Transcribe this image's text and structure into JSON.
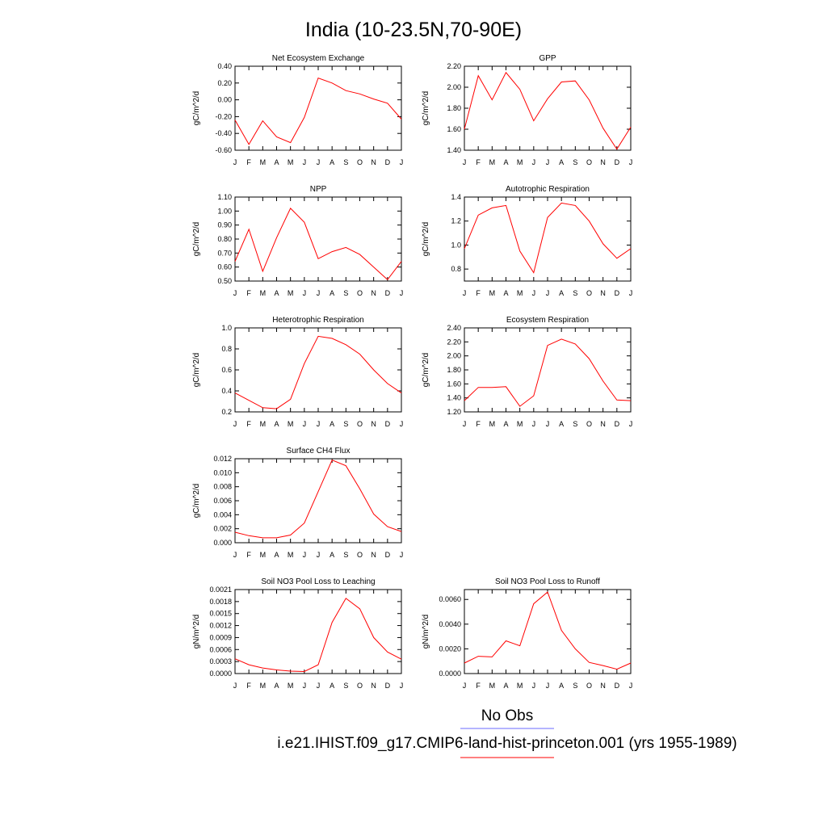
{
  "figure": {
    "title": "India (10-23.5N,70-90E)",
    "legend": [
      {
        "label": "No Obs",
        "color": "#6b6bff"
      },
      {
        "label": "i.e21.IHIST.f09_g17.CMIP6-land-hist-princeton.001 (yrs 1955-1989)",
        "color": "#ff0000"
      }
    ]
  },
  "chart_data": [
    {
      "type": "line",
      "title": "Net Ecosystem Exchange",
      "ylabel": "gC/m^2/d",
      "categories": [
        "J",
        "F",
        "M",
        "A",
        "M",
        "J",
        "J",
        "A",
        "S",
        "O",
        "N",
        "D",
        "J"
      ],
      "ylim": [
        -0.6,
        0.4
      ],
      "yticks": [
        "0.40",
        "0.20",
        "0.00",
        "-0.20",
        "-0.40",
        "-0.60"
      ],
      "series": [
        {
          "color": "#ff0000",
          "values": [
            -0.24,
            -0.53,
            -0.25,
            -0.44,
            -0.51,
            -0.21,
            0.26,
            0.2,
            0.11,
            0.07,
            0.01,
            -0.04,
            -0.23
          ]
        }
      ]
    },
    {
      "type": "line",
      "title": "GPP",
      "ylabel": "gC/m^2/d",
      "categories": [
        "J",
        "F",
        "M",
        "A",
        "M",
        "J",
        "J",
        "A",
        "S",
        "O",
        "N",
        "D",
        "J"
      ],
      "ylim": [
        1.4,
        2.2
      ],
      "yticks": [
        "2.20",
        "2.00",
        "1.80",
        "1.60",
        "1.40"
      ],
      "series": [
        {
          "color": "#ff0000",
          "values": [
            1.6,
            2.11,
            1.88,
            2.14,
            1.98,
            1.68,
            1.89,
            2.05,
            2.06,
            1.88,
            1.61,
            1.41,
            1.62
          ]
        }
      ]
    },
    {
      "type": "line",
      "title": "NPP",
      "ylabel": "gC/m^2/d",
      "categories": [
        "J",
        "F",
        "M",
        "A",
        "M",
        "J",
        "J",
        "A",
        "S",
        "O",
        "N",
        "D",
        "J"
      ],
      "ylim": [
        0.5,
        1.1
      ],
      "yticks": [
        "1.10",
        "1.00",
        "0.90",
        "0.80",
        "0.70",
        "0.60",
        "0.50"
      ],
      "series": [
        {
          "color": "#ff0000",
          "values": [
            0.64,
            0.87,
            0.57,
            0.81,
            1.02,
            0.92,
            0.66,
            0.71,
            0.74,
            0.69,
            0.6,
            0.51,
            0.64
          ]
        }
      ]
    },
    {
      "type": "line",
      "title": "Autotrophic Respiration",
      "ylabel": "gC/m^2/d",
      "categories": [
        "J",
        "F",
        "M",
        "A",
        "M",
        "J",
        "J",
        "A",
        "S",
        "O",
        "N",
        "D",
        "J"
      ],
      "ylim": [
        0.7,
        1.4
      ],
      "yticks": [
        "1.4",
        "1.2",
        "1.0",
        "0.8"
      ],
      "series": [
        {
          "color": "#ff0000",
          "values": [
            0.97,
            1.25,
            1.31,
            1.33,
            0.95,
            0.77,
            1.23,
            1.35,
            1.33,
            1.2,
            1.01,
            0.89,
            0.97
          ]
        }
      ]
    },
    {
      "type": "line",
      "title": "Heterotrophic Respiration",
      "ylabel": "gC/m^2/d",
      "categories": [
        "J",
        "F",
        "M",
        "A",
        "M",
        "J",
        "J",
        "A",
        "S",
        "O",
        "N",
        "D",
        "J"
      ],
      "ylim": [
        0.2,
        1.0
      ],
      "yticks": [
        "1.0",
        "0.8",
        "0.6",
        "0.4",
        "0.2"
      ],
      "series": [
        {
          "color": "#ff0000",
          "values": [
            0.38,
            0.31,
            0.24,
            0.23,
            0.32,
            0.66,
            0.92,
            0.9,
            0.84,
            0.75,
            0.6,
            0.47,
            0.38
          ]
        }
      ]
    },
    {
      "type": "line",
      "title": "Ecosystem Respiration",
      "ylabel": "gC/m^2/d",
      "categories": [
        "J",
        "F",
        "M",
        "A",
        "M",
        "J",
        "J",
        "A",
        "S",
        "O",
        "N",
        "D",
        "J"
      ],
      "ylim": [
        1.2,
        2.4
      ],
      "yticks": [
        "2.40",
        "2.20",
        "2.00",
        "1.80",
        "1.60",
        "1.40",
        "1.20"
      ],
      "series": [
        {
          "color": "#ff0000",
          "values": [
            1.36,
            1.55,
            1.55,
            1.56,
            1.28,
            1.43,
            2.15,
            2.24,
            2.17,
            1.96,
            1.64,
            1.37,
            1.36
          ]
        }
      ]
    },
    {
      "type": "line",
      "title": "Surface CH4 Flux",
      "ylabel": "gC/m^2/d",
      "categories": [
        "J",
        "F",
        "M",
        "A",
        "M",
        "J",
        "J",
        "A",
        "S",
        "O",
        "N",
        "D",
        "J"
      ],
      "ylim": [
        0.0,
        0.012
      ],
      "yticks": [
        "0.012",
        "0.010",
        "0.008",
        "0.006",
        "0.004",
        "0.002",
        "0.000"
      ],
      "series": [
        {
          "color": "#ff0000",
          "values": [
            0.0015,
            0.001,
            0.0007,
            0.0007,
            0.0011,
            0.0028,
            0.0073,
            0.0118,
            0.011,
            0.0077,
            0.0041,
            0.0023,
            0.0016
          ]
        }
      ]
    },
    null,
    {
      "type": "line",
      "title": "Soil NO3 Pool Loss to Leaching",
      "ylabel": "gN/m^2/d",
      "categories": [
        "J",
        "F",
        "M",
        "A",
        "M",
        "J",
        "J",
        "A",
        "S",
        "O",
        "N",
        "D",
        "J"
      ],
      "ylim": [
        0.0,
        0.0021
      ],
      "yticks": [
        "0.0021",
        "0.0018",
        "0.0015",
        "0.0012",
        "0.0009",
        "0.0006",
        "0.0003",
        "0.0000"
      ],
      "series": [
        {
          "color": "#ff0000",
          "values": [
            0.00037,
            0.00022,
            0.00014,
            9e-05,
            6e-05,
            5e-05,
            0.00022,
            0.00128,
            0.00188,
            0.00162,
            0.0009,
            0.00054,
            0.00036
          ]
        }
      ]
    },
    {
      "type": "line",
      "title": "Soil NO3 Pool Loss to Runoff",
      "ylabel": "gN/m^2/d",
      "categories": [
        "J",
        "F",
        "M",
        "A",
        "M",
        "J",
        "J",
        "A",
        "S",
        "O",
        "N",
        "D",
        "J"
      ],
      "ylim": [
        0.0,
        0.0068
      ],
      "yticks": [
        "0.0060",
        "0.0040",
        "0.0020",
        "0.0000"
      ],
      "yticksvals": [
        0.006,
        0.004,
        0.002,
        0.0
      ],
      "series": [
        {
          "color": "#ff0000",
          "values": [
            0.00085,
            0.0014,
            0.00135,
            0.00265,
            0.00225,
            0.00565,
            0.0066,
            0.0035,
            0.002,
            0.0009,
            0.00065,
            0.00035,
            0.00085
          ]
        }
      ]
    }
  ]
}
